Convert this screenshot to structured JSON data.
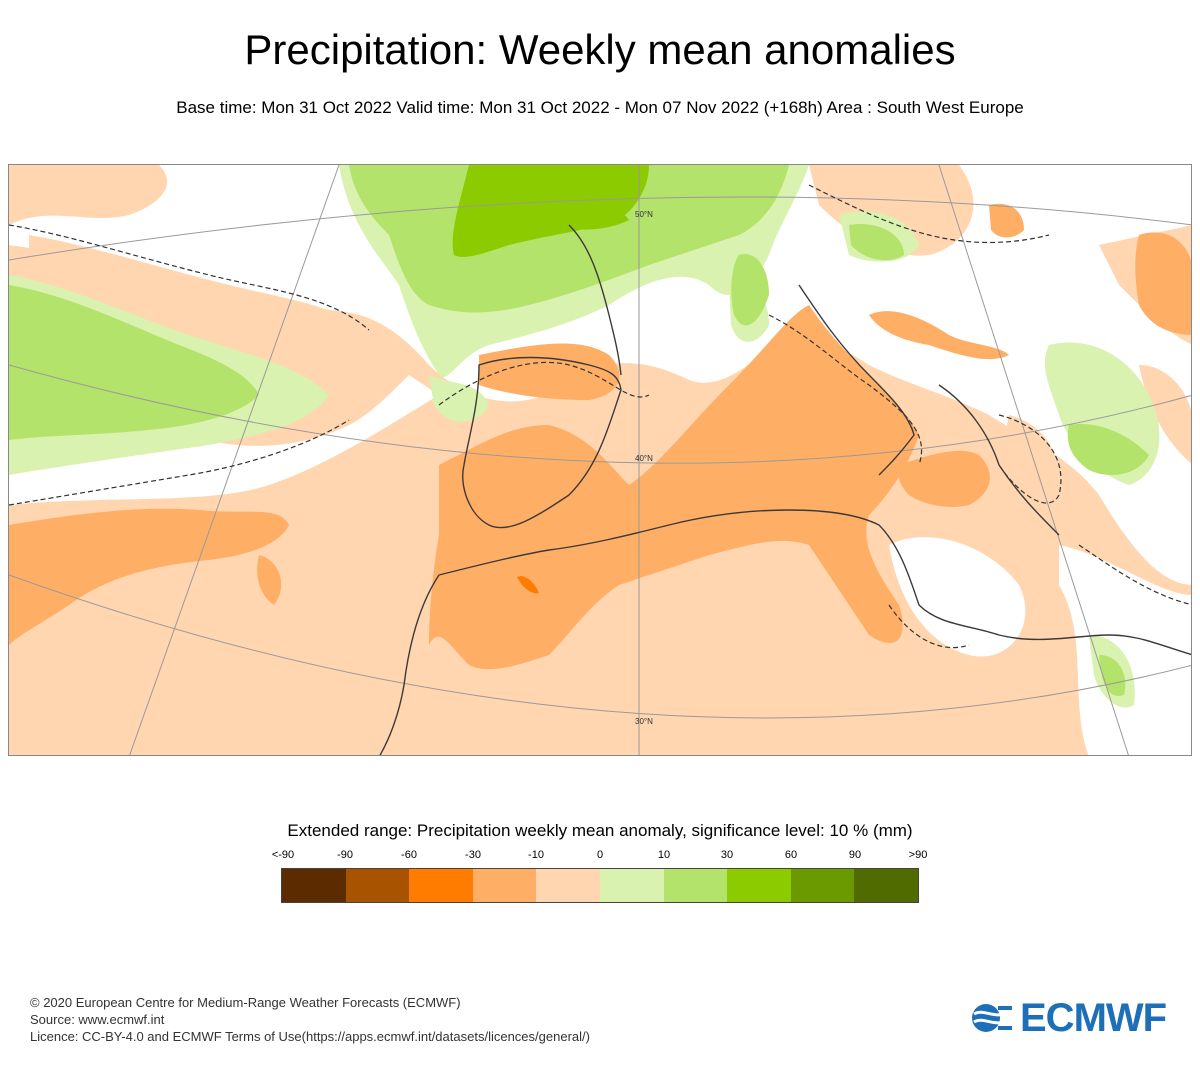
{
  "header": {
    "title": "Precipitation: Weekly mean anomalies",
    "subtitle": "Base time: Mon 31 Oct 2022 Valid time: Mon 31 Oct 2022 - Mon 07 Nov 2022 (+168h) Area : South West Europe"
  },
  "map": {
    "gridlabels": [
      "50°N",
      "40°N",
      "30°N"
    ]
  },
  "legend": {
    "title": "Extended range: Precipitation weekly mean anomaly, significance level: 10 % (mm)",
    "ticks": [
      "<-90",
      "-90",
      "-60",
      "-30",
      "-10",
      "0",
      "10",
      "30",
      "60",
      "90",
      ">90"
    ],
    "colors": [
      "#5c2b00",
      "#a85300",
      "#ff7c00",
      "#ffae66",
      "#ffd6b0",
      "#d9f2b0",
      "#b3e36a",
      "#8ccb00",
      "#6a9a00",
      "#506b00"
    ]
  },
  "footer": {
    "copyright": "© 2020 European Centre for Medium-Range Weather Forecasts (ECMWF)",
    "source": "Source: www.ecmwf.int",
    "licence": "Licence: CC-BY-4.0 and ECMWF Terms of Use(https://apps.ecmwf.int/datasets/licences/general/)"
  },
  "logo": {
    "text": "ECMWF"
  }
}
